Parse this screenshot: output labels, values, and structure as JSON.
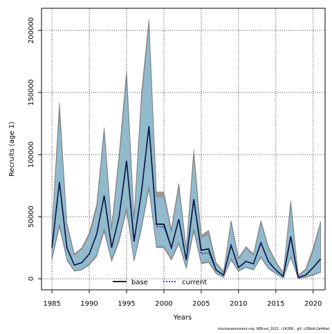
{
  "chart_data": {
    "type": "line",
    "x_label": "Years",
    "y_label": "Recruits (age 1)",
    "footnote": "stockassessment.org, WBcod_2021, r14266 , git: c28bdc2a44ad",
    "x": [
      1985,
      1986,
      1987,
      1988,
      1989,
      1990,
      1991,
      1992,
      1993,
      1994,
      1995,
      1996,
      1997,
      1998,
      1999,
      2000,
      2001,
      2002,
      2003,
      2004,
      2005,
      2006,
      2007,
      2008,
      2009,
      2010,
      2011,
      2012,
      2013,
      2014,
      2015,
      2016,
      2017,
      2018,
      2019,
      2020,
      2021
    ],
    "series": [
      {
        "name": "base",
        "color": "#000000",
        "line_style": "solid",
        "band_color": "#9a9a9a",
        "values": [
          25000,
          78000,
          25000,
          11000,
          13000,
          20000,
          36000,
          67000,
          25000,
          50000,
          95000,
          30000,
          70000,
          123000,
          44000,
          44000,
          25000,
          48000,
          15000,
          64000,
          23000,
          24000,
          7000,
          3000,
          27000,
          9000,
          14000,
          12000,
          29000,
          14000,
          7000,
          2000,
          34000,
          1000,
          3000,
          9000,
          16000
        ],
        "upper": [
          40000,
          142000,
          45000,
          20000,
          25000,
          37000,
          60000,
          122000,
          42000,
          100000,
          168000,
          50000,
          150000,
          209000,
          70000,
          70000,
          40000,
          77000,
          25000,
          104000,
          35000,
          39000,
          13000,
          6000,
          47000,
          17000,
          26000,
          20000,
          47000,
          26000,
          14000,
          5000,
          63000,
          3000,
          8000,
          25000,
          46000
        ],
        "lower": [
          15000,
          42000,
          15000,
          6000,
          7000,
          11000,
          18000,
          38000,
          14000,
          30000,
          55000,
          14000,
          40000,
          72000,
          25000,
          25000,
          15000,
          28000,
          8000,
          38000,
          12000,
          13000,
          4000,
          1000,
          15000,
          6000,
          9000,
          7000,
          17000,
          8000,
          4000,
          500,
          17000,
          200,
          1000,
          3000,
          5000
        ]
      },
      {
        "name": "current",
        "color": "#1a2f8f",
        "line_style": "dotted",
        "band_color": "#8fbfd6",
        "values": [
          25000,
          78000,
          25000,
          11000,
          13000,
          20000,
          36000,
          67000,
          25000,
          50000,
          95000,
          30000,
          70000,
          123000,
          42000,
          42000,
          25000,
          48000,
          15000,
          64000,
          20000,
          21000,
          7000,
          3000,
          27000,
          9000,
          14000,
          12000,
          29000,
          14000,
          7000,
          2000,
          33000,
          1000,
          3000,
          9000,
          16000
        ],
        "upper": [
          38000,
          135000,
          43000,
          19000,
          24000,
          35000,
          57000,
          118000,
          40000,
          96000,
          162000,
          48000,
          145000,
          205000,
          66000,
          66000,
          38000,
          74000,
          24000,
          100000,
          33000,
          36000,
          12000,
          5500,
          45000,
          16000,
          25000,
          19000,
          45000,
          25000,
          13000,
          4500,
          60000,
          2800,
          7000,
          22000,
          46000
        ],
        "lower": [
          16000,
          44000,
          16000,
          6500,
          7500,
          12000,
          19000,
          40000,
          15000,
          32000,
          57000,
          15000,
          42000,
          74000,
          26000,
          26000,
          16000,
          29000,
          9000,
          40000,
          13000,
          14000,
          4500,
          1200,
          16000,
          6500,
          9500,
          7500,
          18000,
          8500,
          4500,
          600,
          18000,
          300,
          1200,
          3500,
          5500
        ]
      }
    ],
    "xlim": [
      1983.6,
      2021.6
    ],
    "ylim": [
      -8900,
      217800
    ],
    "xticks": [
      1985,
      1990,
      1995,
      2000,
      2005,
      2010,
      2015,
      2020
    ],
    "yticks": [
      0,
      50000,
      100000,
      150000,
      200000
    ],
    "grid": true,
    "legend": "bottom"
  }
}
